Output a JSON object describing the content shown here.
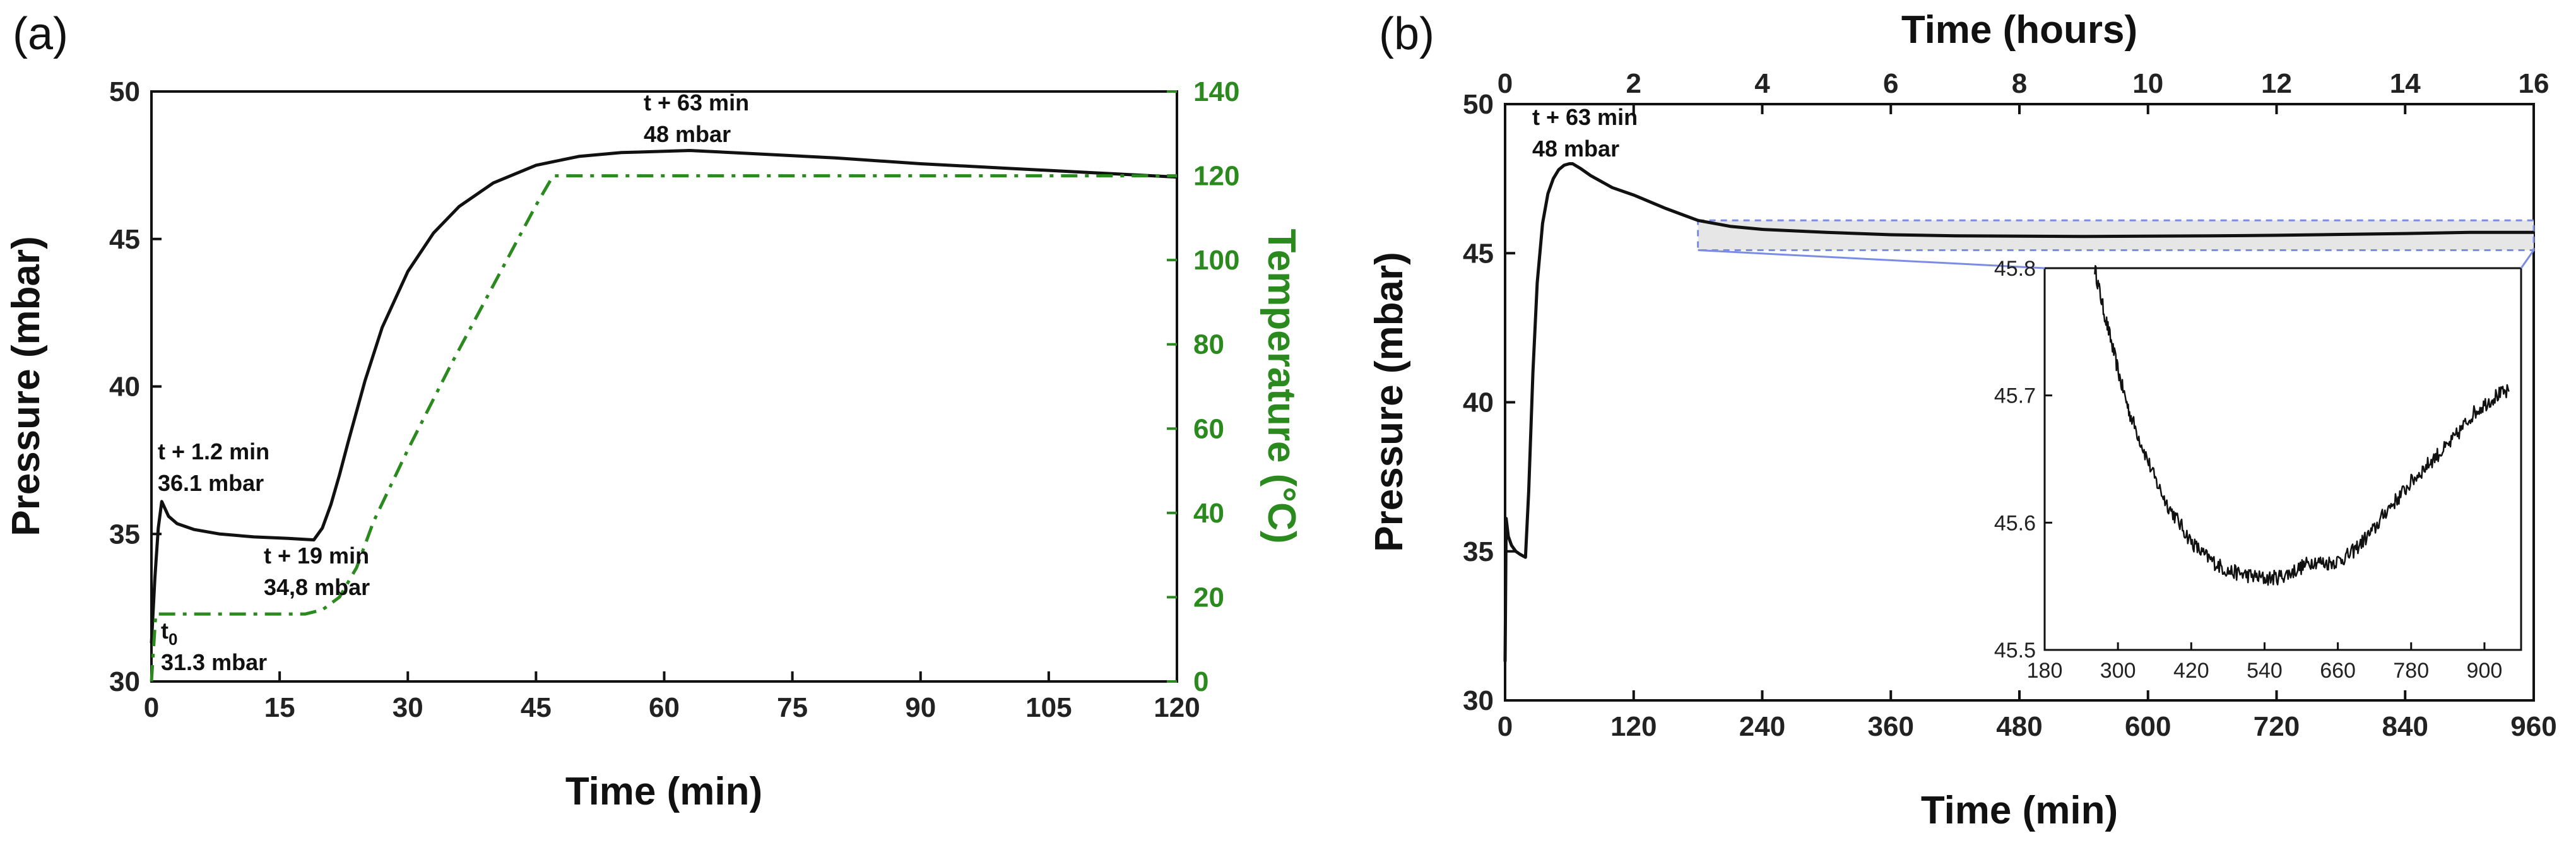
{
  "chart_data": [
    {
      "type": "line",
      "panel_label": "(a)",
      "xlabel": "Time (min)",
      "ylabel": "Pressure (mbar)",
      "y2label": "Temperature (°C)",
      "xlim": [
        0,
        120
      ],
      "ylim": [
        30,
        50
      ],
      "y2lim": [
        0,
        140
      ],
      "xticks": [
        "0",
        "15",
        "30",
        "45",
        "60",
        "75",
        "90",
        "105",
        "120"
      ],
      "yticks": [
        "30",
        "35",
        "40",
        "45",
        "50"
      ],
      "y2ticks": [
        "0",
        "20",
        "40",
        "60",
        "80",
        "100",
        "120",
        "140"
      ],
      "series": [
        {
          "name": "Pressure",
          "axis": "left",
          "color": "#111111",
          "style": "solid",
          "x": [
            0,
            0.4,
            0.8,
            1.2,
            2,
            3,
            5,
            8,
            12,
            16,
            19,
            20,
            21,
            22,
            23,
            25,
            27,
            30,
            33,
            36,
            40,
            45,
            50,
            55,
            63,
            70,
            80,
            90,
            100,
            110,
            120
          ],
          "y": [
            31.3,
            33.5,
            35.2,
            36.1,
            35.6,
            35.35,
            35.15,
            35.0,
            34.9,
            34.85,
            34.8,
            35.2,
            36.0,
            37.0,
            38.1,
            40.2,
            42.0,
            43.9,
            45.2,
            46.1,
            46.9,
            47.5,
            47.8,
            47.93,
            48.0,
            47.9,
            47.75,
            47.55,
            47.4,
            47.25,
            47.1
          ]
        },
        {
          "name": "Temperature",
          "axis": "right",
          "color": "#2a8a1e",
          "style": "dash-dot",
          "x": [
            0,
            0.5,
            18,
            20,
            22,
            24,
            26,
            30,
            35,
            40,
            45,
            47,
            60,
            80,
            100,
            120
          ],
          "y": [
            0,
            16,
            16,
            17,
            20,
            27,
            38,
            55,
            75,
            94,
            113,
            120,
            120,
            120,
            120,
            120
          ]
        }
      ],
      "annotations": [
        {
          "lines": [
            "t + 63 min",
            "48 mbar"
          ],
          "x": 63,
          "y": 48
        },
        {
          "lines": [
            "t + 1.2 min",
            "36.1 mbar"
          ],
          "x": 1.2,
          "y": 36.1
        },
        {
          "lines": [
            "t + 19 min",
            "34,8 mbar"
          ],
          "x": 19,
          "y": 34.8
        },
        {
          "lines": [
            "t0",
            "31.3 mbar"
          ],
          "x": 0,
          "y": 31.3
        }
      ]
    },
    {
      "type": "line",
      "panel_label": "(b)",
      "xlabel": "Time (min)",
      "x2label": "Time (hours)",
      "ylabel": "Pressure (mbar)",
      "xlim": [
        0,
        960
      ],
      "x2lim": [
        0,
        16
      ],
      "ylim": [
        30,
        50
      ],
      "xticks": [
        "0",
        "120",
        "240",
        "360",
        "480",
        "600",
        "720",
        "840",
        "960"
      ],
      "x2ticks": [
        "0",
        "2",
        "4",
        "6",
        "8",
        "10",
        "12",
        "14",
        "16"
      ],
      "yticks": [
        "30",
        "35",
        "40",
        "45",
        "50"
      ],
      "series": [
        {
          "name": "Pressure",
          "color": "#111111",
          "style": "solid",
          "x": [
            0,
            1,
            3,
            6,
            10,
            14,
            19,
            22,
            26,
            30,
            35,
            40,
            45,
            50,
            55,
            60,
            63,
            70,
            80,
            100,
            120,
            150,
            180,
            210,
            240,
            300,
            360,
            420,
            480,
            540,
            600,
            660,
            720,
            780,
            840,
            900,
            960
          ],
          "y": [
            31.3,
            36.1,
            35.5,
            35.2,
            35.0,
            34.9,
            34.8,
            37.0,
            41.0,
            44.0,
            46.0,
            47.0,
            47.5,
            47.8,
            47.95,
            48.0,
            48.0,
            47.85,
            47.6,
            47.2,
            46.95,
            46.5,
            46.1,
            45.9,
            45.8,
            45.7,
            45.62,
            45.58,
            45.57,
            45.56,
            45.57,
            45.58,
            45.6,
            45.63,
            45.66,
            45.7,
            45.7
          ]
        }
      ],
      "annotations": [
        {
          "lines": [
            "t + 63 min",
            "48 mbar"
          ],
          "x": 63,
          "y": 48
        }
      ],
      "zoom_region": {
        "xlim": [
          180,
          960
        ],
        "ylim": [
          45.1,
          46.1
        ]
      },
      "inset": {
        "xlim": [
          180,
          960
        ],
        "ylim": [
          45.5,
          45.8
        ],
        "xticks": [
          "180",
          "300",
          "420",
          "540",
          "660",
          "780",
          "900"
        ],
        "yticks": [
          "45.5",
          "45.6",
          "45.7",
          "45.8"
        ],
        "x": [
          262,
          275,
          290,
          305,
          320,
          340,
          360,
          380,
          400,
          420,
          440,
          460,
          480,
          500,
          520,
          540,
          560,
          580,
          600,
          620,
          640,
          660,
          680,
          700,
          720,
          740,
          760,
          780,
          800,
          820,
          840,
          860,
          880,
          900,
          920,
          940
        ],
        "y": [
          45.8,
          45.77,
          45.74,
          45.71,
          45.685,
          45.66,
          45.635,
          45.615,
          45.6,
          45.585,
          45.575,
          45.568,
          45.562,
          45.56,
          45.558,
          45.556,
          45.557,
          45.56,
          45.565,
          45.57,
          45.568,
          45.57,
          45.575,
          45.585,
          45.595,
          45.61,
          45.62,
          45.632,
          45.642,
          45.652,
          45.66,
          45.672,
          45.685,
          45.693,
          45.7,
          45.703
        ]
      }
    }
  ]
}
